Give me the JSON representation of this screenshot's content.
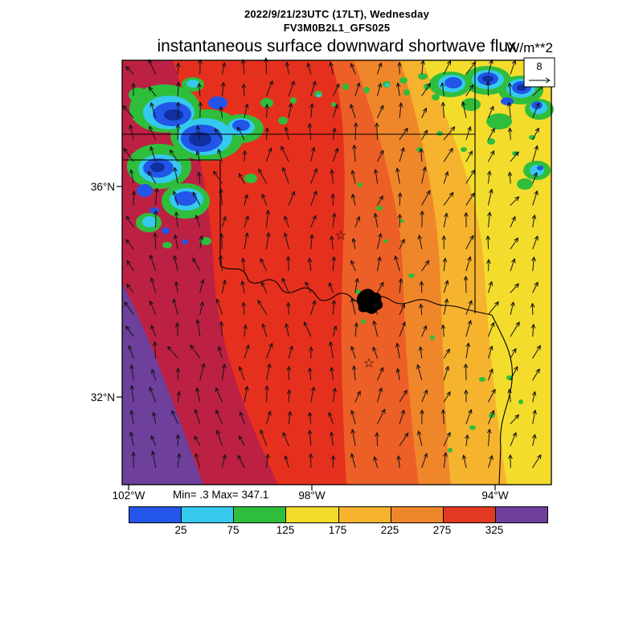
{
  "header": {
    "datetime_line": "2022/9/21/23UTC (17LT), Wednesday",
    "model_line": "FV3M0B2L1_GFS025"
  },
  "title": {
    "text": "instantaneous surface downward shortwave flux",
    "units": "W/m**2"
  },
  "map": {
    "lat_ticks": [
      "36°N",
      "32°N"
    ],
    "lon_ticks": [
      "102°W",
      "98°W",
      "94°W"
    ],
    "stats": "Min= .3 Max= 347.1",
    "reference_vector": {
      "value": "8"
    },
    "marker_glyph": "☆"
  },
  "colorbar": {
    "labels": [
      "25",
      "75",
      "125",
      "175",
      "225",
      "275",
      "325"
    ],
    "colors": [
      "#2255E8",
      "#35C9EE",
      "#2FBE3C",
      "#F3DC2C",
      "#F6B32E",
      "#F0862A",
      "#E23A22",
      "#6E3F9B"
    ]
  },
  "chart_data": {
    "type": "heatmap",
    "title": "instantaneous surface downward shortwave flux",
    "units": "W/m**2",
    "valid_time": "2022/9/21/23UTC (17LT), Wednesday",
    "model_run": "FV3M0B2L1_GFS025",
    "stat_min": 0.3,
    "stat_max": 347.1,
    "contour_levels": [
      25,
      75,
      125,
      175,
      225,
      275,
      325
    ],
    "colorbar_colors": [
      "#2255E8",
      "#35C9EE",
      "#2FBE3C",
      "#F3DC2C",
      "#F6B32E",
      "#F0862A",
      "#E23A22",
      "#6E3F9B"
    ],
    "x_ticks": [
      "102°W",
      "98°W",
      "94°W"
    ],
    "y_ticks": [
      "36°N",
      "32°N"
    ],
    "overlay": {
      "wind_vectors": true,
      "reference_vector_value": 8,
      "station_markers": 2
    },
    "pattern": "flux increases from east (~150-225 W/m**2, yellow/orange) to west (>325 W/m**2, purple band along western edge) over the TX/OK domain; scattered low-flux cloudy patches (<75 W/m**2, blue/green) over the Texas panhandle / western Oklahoma and the northeastern corner"
  }
}
